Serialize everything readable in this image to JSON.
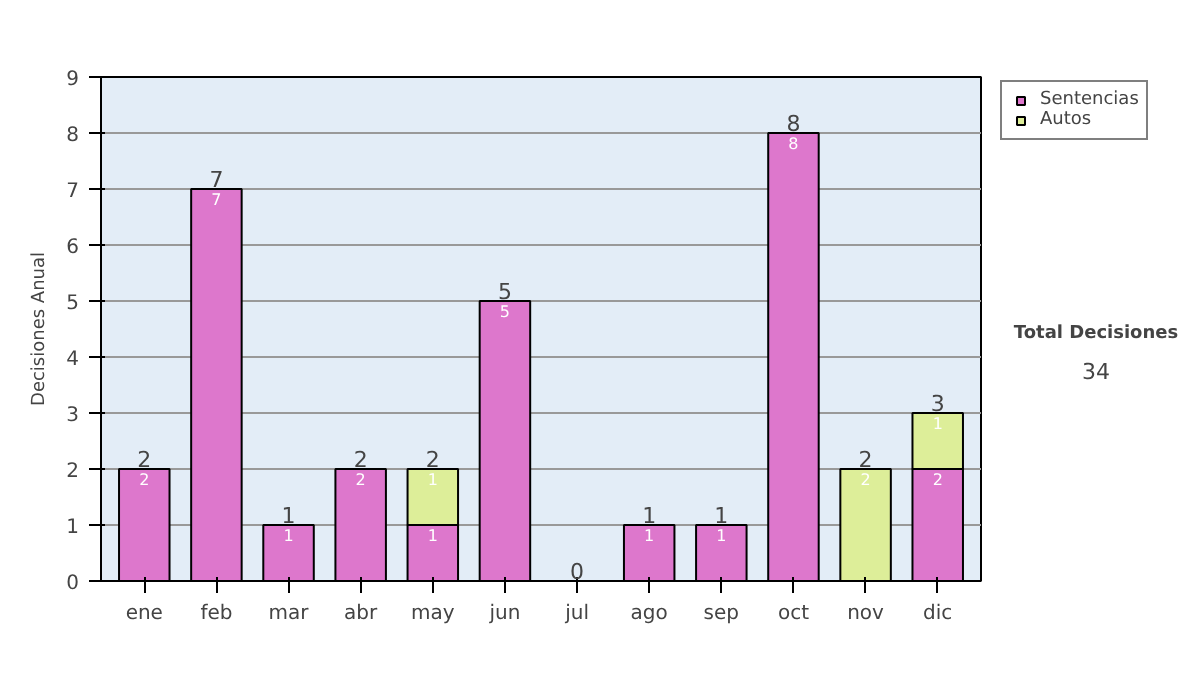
{
  "chart_data": {
    "type": "bar",
    "stacked": true,
    "ylabel": "Decisiones Anual",
    "categories": [
      "ene",
      "feb",
      "mar",
      "abr",
      "may",
      "jun",
      "jul",
      "ago",
      "sep",
      "oct",
      "nov",
      "dic"
    ],
    "series": [
      {
        "name": "Sentencias",
        "color": "#dd77cc",
        "values": [
          2,
          7,
          1,
          2,
          1,
          5,
          0,
          1,
          1,
          8,
          0,
          2
        ],
        "value_labels": [
          "2",
          "7",
          "1",
          "2",
          "1",
          "5",
          null,
          "1",
          "1",
          "8",
          null,
          "2"
        ]
      },
      {
        "name": "Autos",
        "color": "#ddee99",
        "values": [
          0,
          0,
          0,
          0,
          1,
          0,
          0,
          0,
          0,
          0,
          2,
          1
        ],
        "value_labels": [
          null,
          null,
          null,
          null,
          "1",
          null,
          null,
          null,
          null,
          null,
          "2",
          "1"
        ]
      }
    ],
    "totals": [
      "2",
      "7",
      "1",
      "2",
      "2",
      "5",
      "0",
      "1",
      "1",
      "8",
      "2",
      "3"
    ],
    "ylim": [
      0,
      9
    ],
    "yticks": [
      0,
      1,
      2,
      3,
      4,
      5,
      6,
      7,
      8,
      9
    ],
    "grid": "y",
    "legend": "right",
    "annotations": [
      "Total Decisiones",
      "34"
    ]
  }
}
